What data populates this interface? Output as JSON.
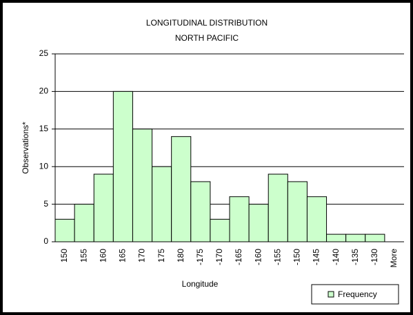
{
  "chart_data": {
    "type": "bar",
    "title": "LONGITUDINAL DISTRIBUTION",
    "subtitle": "NORTH PACIFIC",
    "x_label": "Longitude",
    "y_label": "Observations*",
    "categories": [
      "150",
      "155",
      "160",
      "165",
      "170",
      "175",
      "180",
      "-175",
      "-170",
      "-165",
      "-160",
      "-155",
      "-150",
      "-145",
      "-140",
      "-135",
      "-130",
      "More"
    ],
    "series": [
      {
        "name": "Frequency",
        "color": "#ccffcc",
        "values": [
          3,
          5,
          9,
          20,
          15,
          10,
          14,
          8,
          3,
          6,
          5,
          9,
          8,
          6,
          1,
          1,
          1,
          0
        ]
      }
    ],
    "ylim": [
      0,
      25
    ],
    "yticks": [
      0,
      5,
      10,
      15,
      20,
      25
    ],
    "grid": true,
    "legend": "bottom-right"
  }
}
